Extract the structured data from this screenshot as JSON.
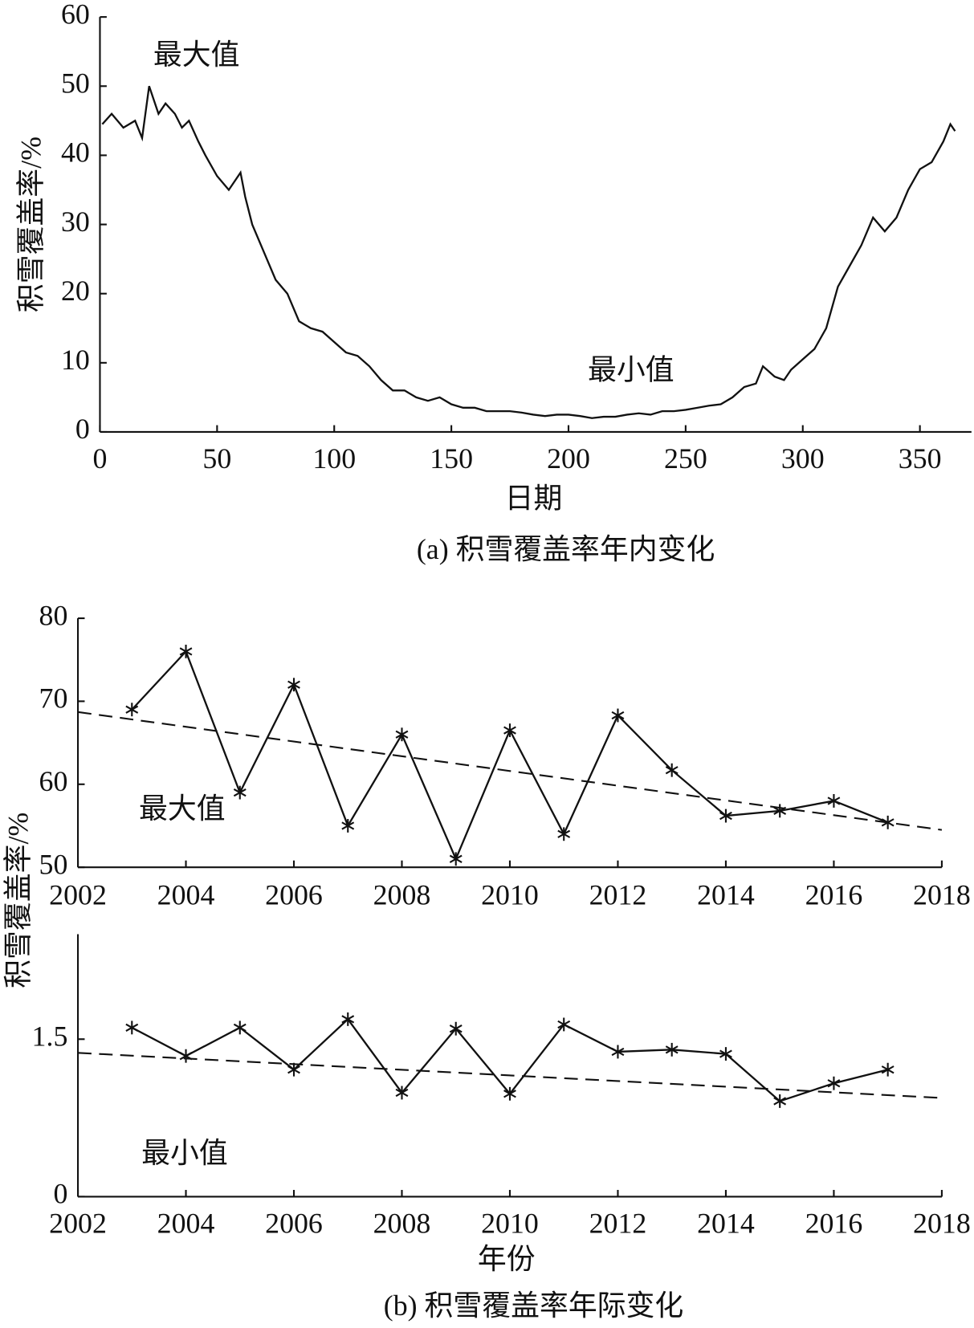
{
  "chart_data": [
    {
      "type": "line",
      "caption": "(a) 积雪覆盖率年内变化",
      "xlabel": "日期",
      "ylabel": "积雪覆盖率/%",
      "annotations": [
        "最大值",
        "最小值"
      ],
      "x": [
        1,
        5,
        10,
        15,
        18,
        21,
        25,
        28,
        32,
        35,
        38,
        42,
        45,
        50,
        55,
        60,
        62,
        65,
        70,
        75,
        80,
        85,
        90,
        95,
        100,
        105,
        110,
        115,
        120,
        125,
        130,
        135,
        140,
        145,
        150,
        155,
        160,
        165,
        170,
        175,
        180,
        185,
        190,
        195,
        200,
        205,
        210,
        215,
        220,
        225,
        230,
        235,
        240,
        245,
        250,
        255,
        260,
        265,
        270,
        275,
        280,
        283,
        288,
        292,
        295,
        300,
        305,
        310,
        315,
        320,
        325,
        330,
        335,
        340,
        345,
        350,
        355,
        360,
        363,
        365
      ],
      "series": [
        {
          "color": "#111111",
          "values": [
            44.5,
            46,
            44,
            45,
            42.5,
            50,
            46,
            47.5,
            46,
            44,
            45,
            42,
            40,
            37,
            35,
            37.5,
            34,
            30,
            26,
            22,
            20,
            16,
            15,
            14.5,
            13,
            11.5,
            11,
            9.5,
            7.5,
            6,
            6,
            5,
            4.5,
            5,
            4,
            3.5,
            3.5,
            3,
            3,
            3,
            2.8,
            2.5,
            2.3,
            2.5,
            2.5,
            2.3,
            2,
            2.2,
            2.2,
            2.5,
            2.7,
            2.5,
            3,
            3,
            3.2,
            3.5,
            3.8,
            4,
            5,
            6.5,
            7,
            9.5,
            8,
            7.5,
            9,
            10.5,
            12,
            15,
            21,
            24,
            27,
            31,
            29,
            31,
            35,
            38,
            39,
            42,
            44.5,
            43.5
          ]
        }
      ],
      "xlim": [
        0,
        372
      ],
      "ylim": [
        0,
        60
      ],
      "xticks": [
        0,
        50,
        100,
        150,
        200,
        250,
        300,
        350
      ],
      "yticks": [
        0,
        10,
        20,
        30,
        40,
        50,
        60
      ]
    },
    {
      "type": "line",
      "ylabel": "积雪覆盖率/%",
      "annotations": [
        "最大值"
      ],
      "x": [
        2003,
        2004,
        2005,
        2006,
        2007,
        2008,
        2009,
        2010,
        2011,
        2012,
        2013,
        2014,
        2015,
        2016,
        2017
      ],
      "series": [
        {
          "color": "#111111",
          "marker": "asterisk",
          "values": [
            69,
            76,
            59,
            72,
            55,
            66,
            51,
            66.5,
            54,
            68.3,
            61.7,
            56.2,
            56.8,
            58,
            55.4
          ]
        }
      ],
      "trend": {
        "x": [
          2002,
          2018
        ],
        "values": [
          68.7,
          54.5
        ],
        "dashed": true
      },
      "xlim": [
        2002,
        2018
      ],
      "ylim": [
        50,
        80
      ],
      "xticks": [
        2002,
        2004,
        2006,
        2008,
        2010,
        2012,
        2014,
        2016,
        2018
      ],
      "yticks": [
        50,
        60,
        70,
        80
      ]
    },
    {
      "type": "line",
      "caption": "(b) 积雪覆盖率年际变化",
      "xlabel": "年份",
      "annotations": [
        "最小值"
      ],
      "x": [
        2003,
        2004,
        2005,
        2006,
        2007,
        2008,
        2009,
        2010,
        2011,
        2012,
        2013,
        2014,
        2015,
        2016,
        2017
      ],
      "series": [
        {
          "color": "#111111",
          "marker": "asterisk",
          "values": [
            1.61,
            1.34,
            1.61,
            1.21,
            1.69,
            0.99,
            1.6,
            0.98,
            1.64,
            1.38,
            1.4,
            1.36,
            0.91,
            1.08,
            1.21
          ]
        }
      ],
      "trend": {
        "x": [
          2002,
          2018
        ],
        "values": [
          1.37,
          0.94
        ],
        "dashed": true
      },
      "xlim": [
        2002,
        2018
      ],
      "ylim": [
        0,
        2.5
      ],
      "xticks": [
        2002,
        2004,
        2006,
        2008,
        2010,
        2012,
        2014,
        2016,
        2018
      ],
      "yticks": [
        0,
        1.5
      ]
    }
  ]
}
